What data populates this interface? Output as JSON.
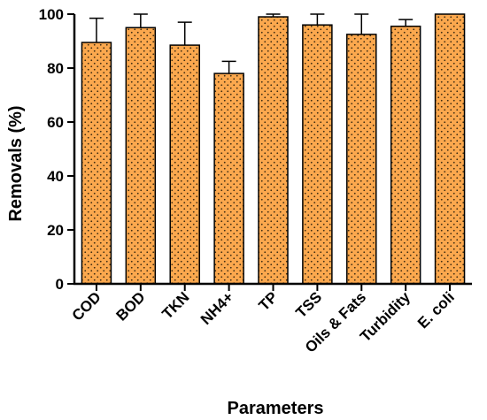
{
  "colors": {
    "bar_fill": "#FBA84E",
    "bar_dots": "#3a2a10",
    "axis": "#000000"
  },
  "chart_data": {
    "type": "bar",
    "xlabel": "Parameters",
    "ylabel": "Removals (%)",
    "ylim": [
      0,
      100
    ],
    "yticks": [
      0,
      20,
      40,
      60,
      80,
      100
    ],
    "categories": [
      "COD",
      "BOD",
      "TKN",
      "NH4+",
      "TP",
      "TSS",
      "Oils & Fats",
      "Turbidity",
      "E. coli"
    ],
    "values": [
      89.5,
      95,
      88.5,
      78,
      99,
      96,
      92.5,
      95.5,
      100
    ],
    "error_upper": [
      98.5,
      100,
      97,
      82.5,
      100,
      100,
      100,
      98,
      100
    ],
    "grid": false,
    "pattern": "dotted"
  }
}
